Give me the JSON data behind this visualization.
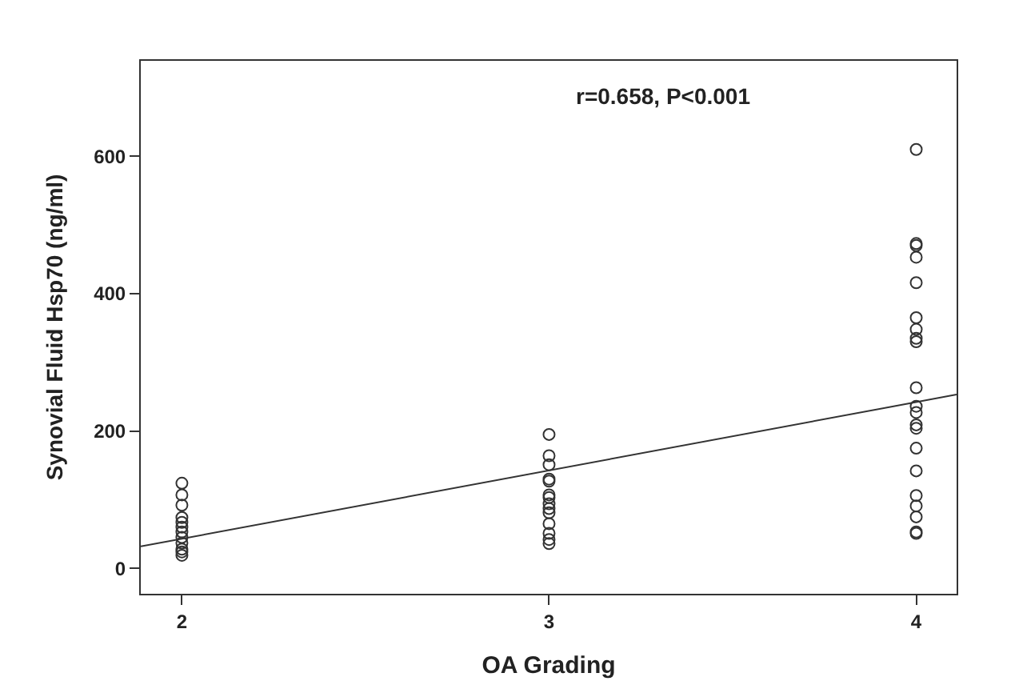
{
  "chart_data": {
    "type": "scatter",
    "xlabel": "OA Grading",
    "ylabel": "Synovial Fluid Hsp70 (ng/ml)",
    "annotations": [
      "r=0.658, P<0.001"
    ],
    "xlim": [
      1.888,
      4.11
    ],
    "xticks": [
      2,
      3,
      4
    ],
    "ylim": [
      -37,
      739
    ],
    "yticks": [
      0,
      200,
      400,
      600
    ],
    "marker": "circle",
    "series": [
      {
        "color": "#333333",
        "x": [
          2,
          2,
          2,
          2,
          2,
          2,
          2,
          2,
          2,
          2,
          2,
          2,
          3,
          3,
          3,
          3,
          3,
          3,
          3,
          3,
          3,
          3,
          3,
          3,
          3,
          3,
          4,
          4,
          4,
          4,
          4,
          4,
          4,
          4,
          4,
          4,
          4,
          4,
          4,
          4,
          4,
          4,
          4,
          4,
          4,
          4,
          4
        ],
        "values": [
          124,
          107,
          92,
          74,
          67,
          60,
          53,
          45,
          37,
          28,
          19,
          24,
          195,
          164,
          151,
          130,
          127,
          107,
          103,
          94,
          87,
          81,
          65,
          51,
          42,
          36,
          610,
          473,
          470,
          453,
          416,
          365,
          348,
          335,
          330,
          263,
          236,
          227,
          209,
          204,
          175,
          142,
          106,
          91,
          75,
          53,
          51
        ]
      },
      {
        "type": "line",
        "color": "#333333",
        "marker": "none",
        "x": [
          1.888,
          4.11
        ],
        "values": [
          32,
          253
        ]
      }
    ]
  }
}
